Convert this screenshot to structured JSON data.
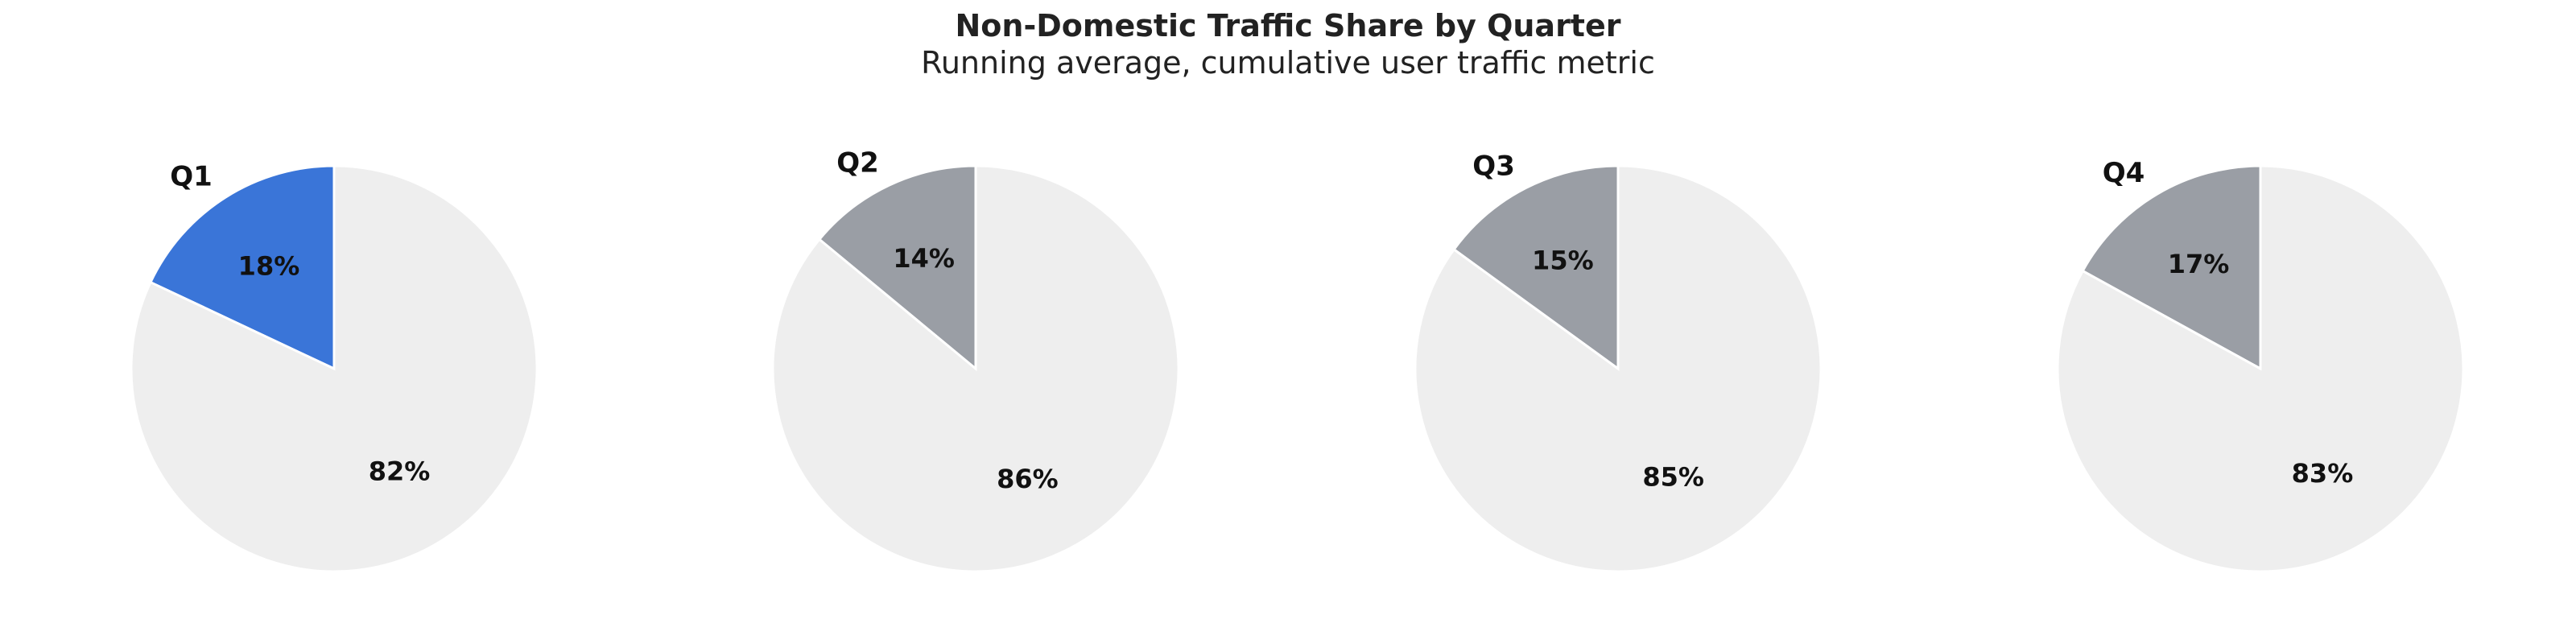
{
  "chart_data": {
    "type": "pie",
    "title": "Non-Domestic Traffic Share by Quarter",
    "subtitle": "Running average, cumulative user traffic metric",
    "colors": {
      "highlight": "#3a75d8",
      "slice": "#9a9ea5",
      "remainder": "#eeeeee"
    },
    "pies": [
      {
        "label": "Q1",
        "highlight": true,
        "values": [
          18,
          82
        ],
        "labels": [
          "18%",
          "82%"
        ]
      },
      {
        "label": "Q2",
        "highlight": false,
        "values": [
          14,
          86
        ],
        "labels": [
          "14%",
          "86%"
        ]
      },
      {
        "label": "Q3",
        "highlight": false,
        "values": [
          15,
          85
        ],
        "labels": [
          "15%",
          "85%"
        ]
      },
      {
        "label": "Q4",
        "highlight": false,
        "values": [
          17,
          83
        ],
        "labels": [
          "17%",
          "83%"
        ]
      }
    ]
  }
}
